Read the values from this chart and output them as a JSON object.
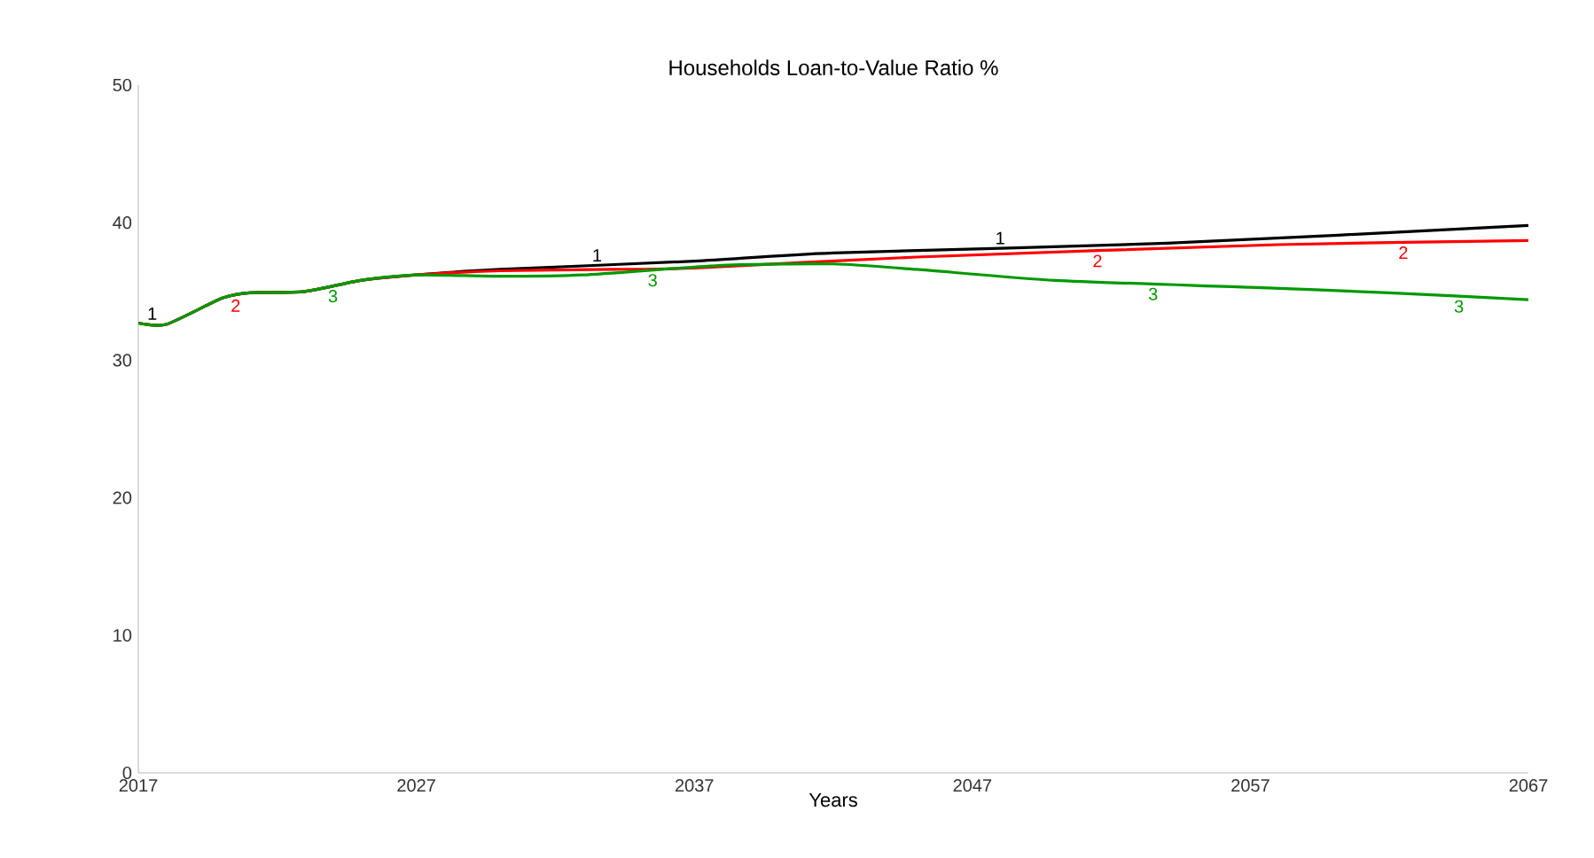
{
  "chart_data": {
    "type": "line",
    "title": "Households Loan-to-Value Ratio %",
    "xlabel": "Years",
    "xlim": [
      2017,
      2067
    ],
    "xticks": [
      2017,
      2027,
      2037,
      2047,
      2057,
      2067
    ],
    "ylim": [
      0,
      50
    ],
    "yticks": [
      0,
      10,
      20,
      30,
      40,
      50
    ],
    "grid": false,
    "legend": false,
    "marker": "none",
    "line_style": "solid",
    "series": [
      {
        "name": "1",
        "color": "#000000",
        "x": [
          2017,
          2018,
          2020,
          2021,
          2023,
          2025,
          2027,
          2030,
          2037,
          2042,
          2054,
          2067
        ],
        "values": [
          32.7,
          32.6,
          34.5,
          34.9,
          35.0,
          35.8,
          36.2,
          36.6,
          37.2,
          37.8,
          38.5,
          39.8
        ]
      },
      {
        "name": "2",
        "color": "#ff0000",
        "x": [
          2017,
          2018,
          2020,
          2021,
          2023,
          2025,
          2027,
          2030,
          2034,
          2037,
          2045,
          2058,
          2067
        ],
        "values": [
          32.7,
          32.6,
          34.5,
          34.9,
          35.0,
          35.8,
          36.2,
          36.5,
          36.6,
          36.7,
          37.5,
          38.4,
          38.7
        ]
      },
      {
        "name": "3",
        "color": "#009900",
        "x": [
          2017,
          2018,
          2020,
          2021,
          2023,
          2025,
          2027,
          2030,
          2033,
          2038,
          2042,
          2045,
          2050,
          2057,
          2062,
          2067
        ],
        "values": [
          32.7,
          32.6,
          34.5,
          34.9,
          35.0,
          35.8,
          36.2,
          36.1,
          36.2,
          36.9,
          37.0,
          36.6,
          35.8,
          35.3,
          34.9,
          34.4
        ]
      }
    ]
  }
}
